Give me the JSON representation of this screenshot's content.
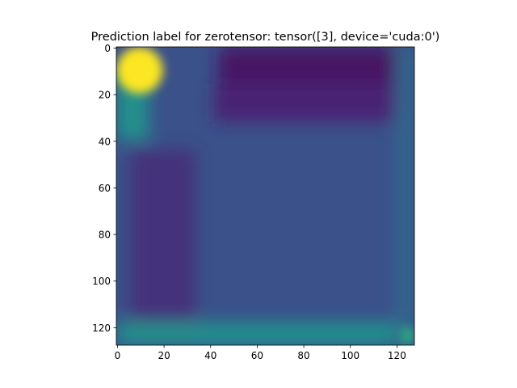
{
  "chart_data": {
    "type": "heatmap",
    "title": "Prediction label for zerotensor: tensor([3], device='cuda:0')",
    "xlabel": "",
    "ylabel": "",
    "colormap": "viridis",
    "image_size": [
      128,
      128
    ],
    "xlim": [
      -0.5,
      127.5
    ],
    "ylim": [
      127.5,
      -0.5
    ],
    "y_inverted": true,
    "grid": false,
    "x_ticks": [
      0,
      20,
      40,
      60,
      80,
      100,
      120
    ],
    "y_ticks": [
      0,
      20,
      40,
      60,
      80,
      100,
      120
    ],
    "x_tick_labels": [
      "0",
      "20",
      "40",
      "60",
      "80",
      "100",
      "120"
    ],
    "y_tick_labels": [
      "0",
      "20",
      "40",
      "60",
      "80",
      "100",
      "120"
    ],
    "value_range": [
      0,
      1
    ],
    "background_value": 0.25,
    "regions": [
      {
        "name": "top-left-hotspot",
        "x": [
          0,
          20
        ],
        "y": [
          0,
          20
        ],
        "value": 1.0
      },
      {
        "name": "top-left-glow",
        "x": [
          0,
          14
        ],
        "y": [
          10,
          40
        ],
        "value": 0.5
      },
      {
        "name": "top-band",
        "x": [
          44,
          122
        ],
        "y": [
          0,
          16
        ],
        "value": 0.05
      },
      {
        "name": "upper-band",
        "x": [
          42,
          120
        ],
        "y": [
          16,
          32
        ],
        "value": 0.1
      },
      {
        "name": "left-band",
        "x": [
          6,
          34
        ],
        "y": [
          44,
          118
        ],
        "value": 0.14
      },
      {
        "name": "bottom-band",
        "x": [
          0,
          128
        ],
        "y": [
          118,
          128
        ],
        "value": 0.5
      },
      {
        "name": "right-band",
        "x": [
          120,
          128
        ],
        "y": [
          0,
          128
        ],
        "value": 0.33
      },
      {
        "name": "bottom-right-hotspot",
        "x": [
          122,
          128
        ],
        "y": [
          120,
          128
        ],
        "value": 0.62
      }
    ]
  }
}
